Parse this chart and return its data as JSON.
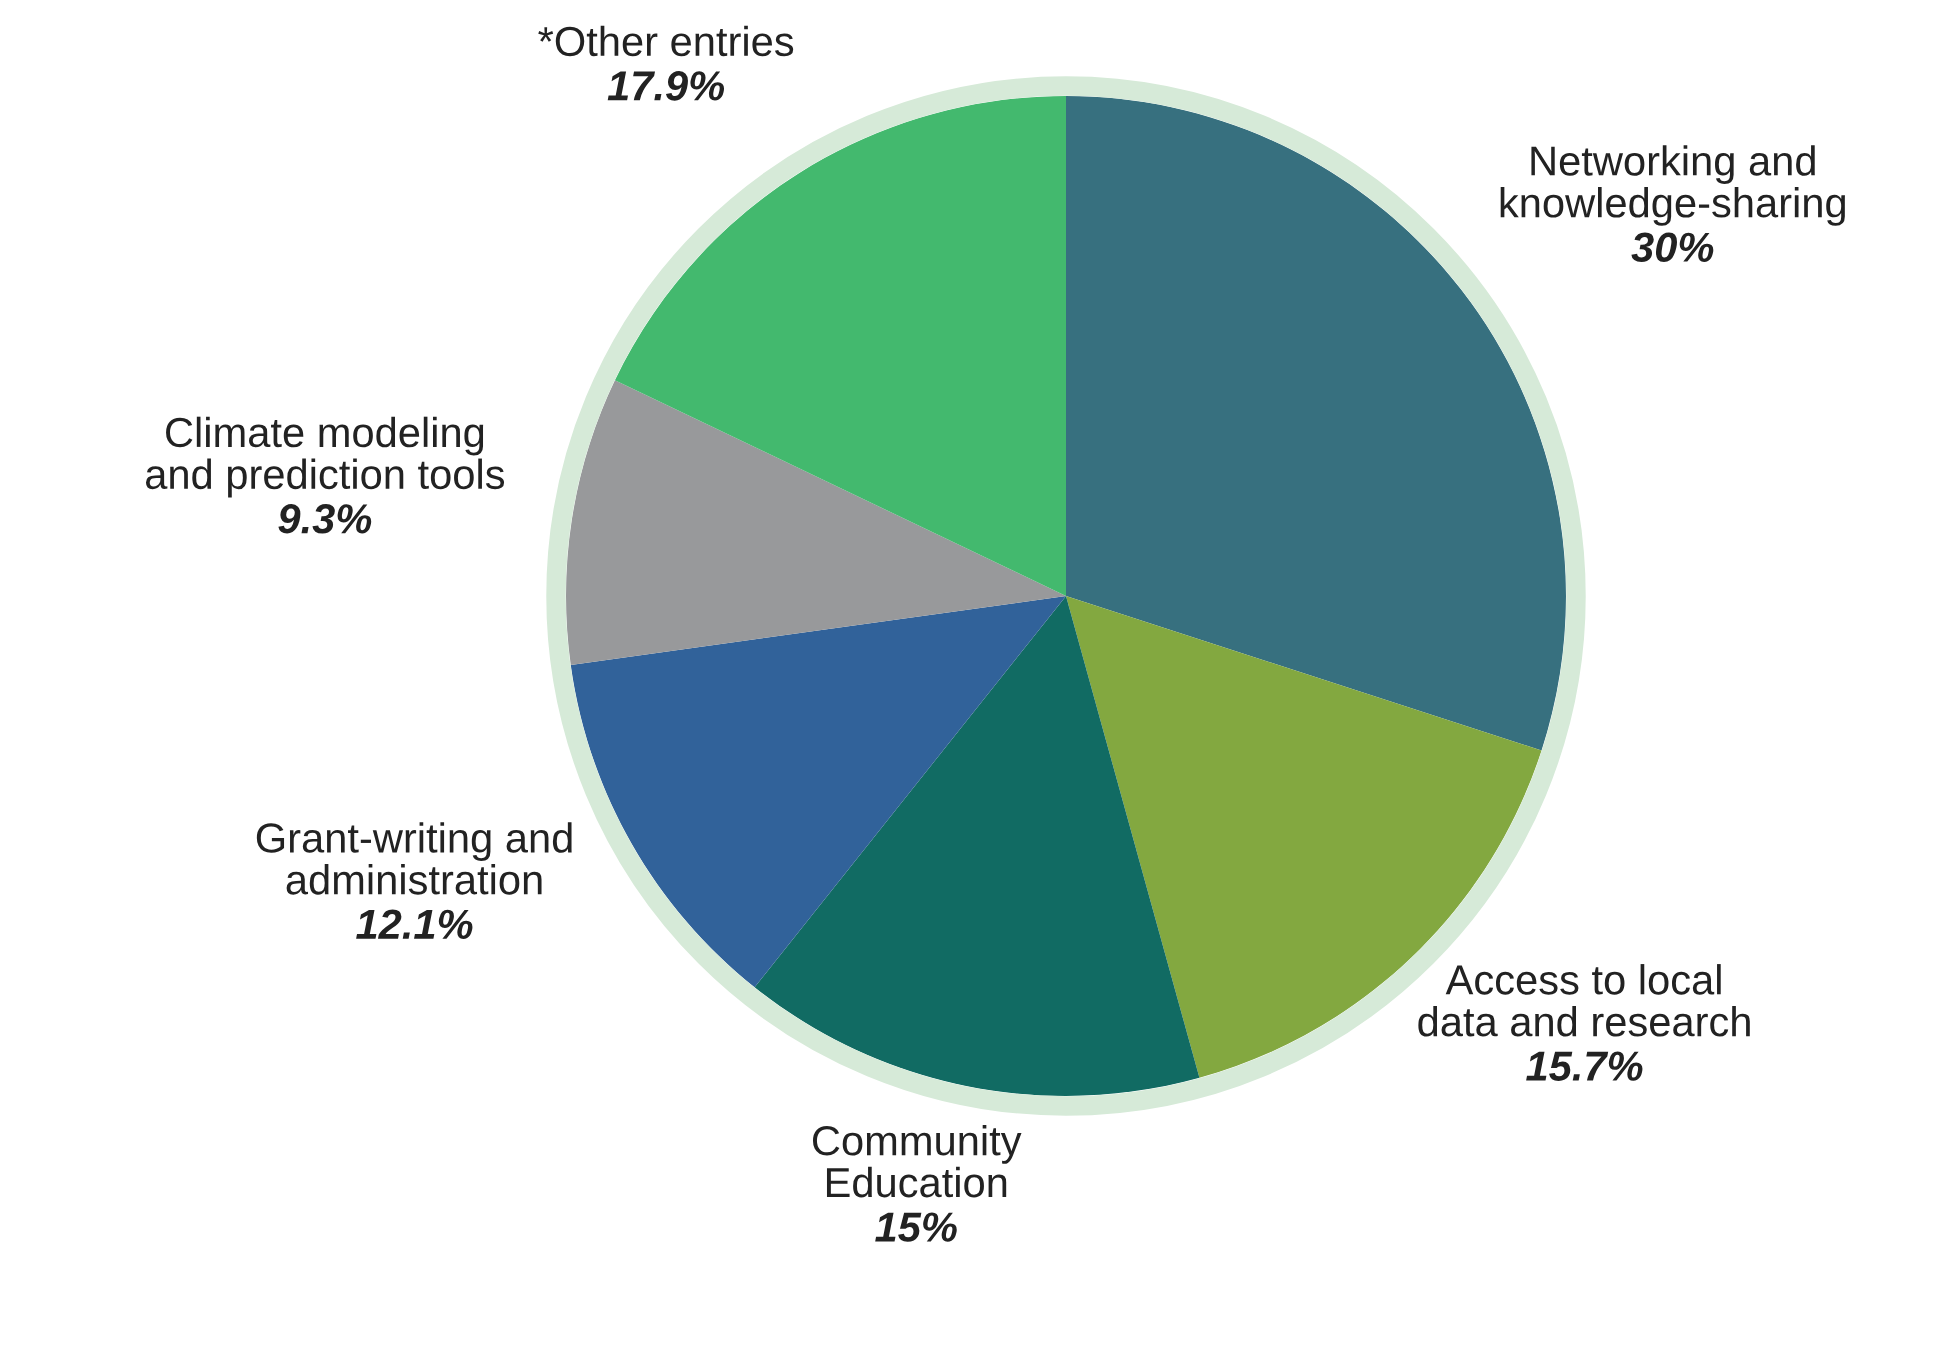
{
  "chart_data": {
    "type": "pie",
    "categories": [
      "Networking and\nknowledge-sharing",
      "Access to local\ndata and research",
      "Community\nEducation",
      "Grant-writing and\nadministration",
      "Climate modeling\nand prediction tools",
      "*Other entries"
    ],
    "values": [
      30,
      15.7,
      15,
      12.1,
      9.3,
      17.9
    ],
    "value_labels": [
      "30%",
      "15.7%",
      "15%",
      "12.1%",
      "9.3%",
      "17.9%"
    ],
    "colors": [
      "#37707f",
      "#83a840",
      "#116b63",
      "#31629a",
      "#98999b",
      "#43b96e"
    ],
    "legend": false
  }
}
